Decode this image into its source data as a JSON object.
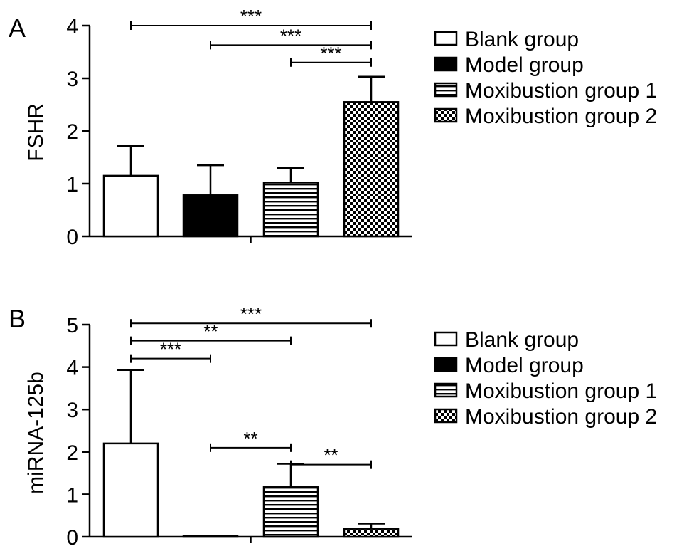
{
  "patterns": [
    "open",
    "solid",
    "hstripe",
    "checker"
  ],
  "chart_data": [
    {
      "panel_label": "A",
      "type": "bar",
      "ylabel": "FSHR",
      "ylim": [
        0,
        4
      ],
      "yticks": [
        0,
        1,
        2,
        3,
        4
      ],
      "grid": false,
      "legend_position": "right",
      "categories": [
        "Blank group",
        "Model group",
        "Moxibustion group 1",
        "Moxibustion group 2"
      ],
      "values": [
        1.15,
        0.78,
        1.02,
        2.55
      ],
      "errors": [
        0.57,
        0.57,
        0.28,
        0.48
      ],
      "significance": [
        {
          "from": 0,
          "to": 3,
          "label": "***",
          "y": 4.0
        },
        {
          "from": 1,
          "to": 3,
          "label": "***",
          "y": 3.63
        },
        {
          "from": 2,
          "to": 3,
          "label": "***",
          "y": 3.3
        }
      ]
    },
    {
      "panel_label": "B",
      "type": "bar",
      "ylabel": "miRNA-125b",
      "ylim": [
        0,
        5
      ],
      "yticks": [
        0,
        1,
        2,
        3,
        4,
        5
      ],
      "grid": false,
      "legend_position": "right",
      "categories": [
        "Blank group",
        "Model group",
        "Moxibustion group 1",
        "Moxibustion group 2"
      ],
      "values": [
        2.2,
        0.02,
        1.17,
        0.19
      ],
      "errors": [
        1.73,
        0.0,
        0.55,
        0.12
      ],
      "significance": [
        {
          "from": 0,
          "to": 3,
          "label": "***",
          "y": 5.03
        },
        {
          "from": 0,
          "to": 2,
          "label": "**",
          "y": 4.62
        },
        {
          "from": 0,
          "to": 1,
          "label": "***",
          "y": 4.2
        },
        {
          "from": 1,
          "to": 2,
          "label": "**",
          "y": 2.1
        },
        {
          "from": 2,
          "to": 3,
          "label": "**",
          "y": 1.7
        }
      ]
    }
  ]
}
